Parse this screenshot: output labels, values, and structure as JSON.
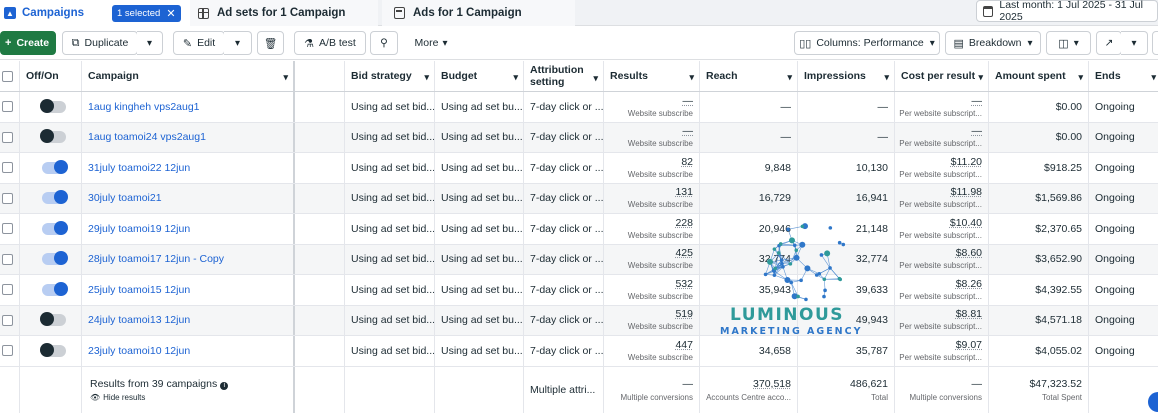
{
  "tabs": {
    "campaigns_label": "Campaigns",
    "selected_chip": "1 selected",
    "adsets_label": "Ad sets for 1 Campaign",
    "ads_label": "Ads for 1 Campaign",
    "date_range": "Last month: 1 Jul 2025 - 31 Jul 2025"
  },
  "toolbar": {
    "create": "Create",
    "duplicate": "Duplicate",
    "edit": "Edit",
    "ab_test": "A/B test",
    "more": "More",
    "columns": "Columns: Performance",
    "breakdown": "Breakdown"
  },
  "columns": {
    "off_on": "Off/On",
    "campaign": "Campaign",
    "bid_strategy": "Bid strategy",
    "budget": "Budget",
    "attribution": "Attribution setting",
    "results": "Results",
    "reach": "Reach",
    "impressions": "Impressions",
    "cost_per_result": "Cost per result",
    "amount_spent": "Amount spent",
    "ends": "Ends"
  },
  "rows": [
    {
      "on": false,
      "campaign": "1aug kingheh vps2aug1",
      "bid": "Using ad set bid...",
      "budget": "Using ad set bu...",
      "attr": "7-day click or ...",
      "results": "—",
      "results_sub": "Website subscribe",
      "reach": "—",
      "impressions": "—",
      "cpr": "—",
      "cpr_sub": "Per website subscript...",
      "spent": "$0.00",
      "ends": "Ongoing"
    },
    {
      "on": false,
      "campaign": "1aug toamoi24 vps2aug1",
      "bid": "Using ad set bid...",
      "budget": "Using ad set bu...",
      "attr": "7-day click or ...",
      "results": "—",
      "results_sub": "Website subscribe",
      "reach": "—",
      "impressions": "—",
      "cpr": "—",
      "cpr_sub": "Per website subscript...",
      "spent": "$0.00",
      "ends": "Ongoing"
    },
    {
      "on": true,
      "campaign": "31july toamoi22 12jun",
      "bid": "Using ad set bid...",
      "budget": "Using ad set bu...",
      "attr": "7-day click or ...",
      "results": "82",
      "results_sub": "Website subscribe",
      "reach": "9,848",
      "impressions": "10,130",
      "cpr": "$11.20",
      "cpr_sub": "Per website subscript...",
      "spent": "$918.25",
      "ends": "Ongoing"
    },
    {
      "on": true,
      "campaign": "30july toamoi21",
      "bid": "Using ad set bid...",
      "budget": "Using ad set bu...",
      "attr": "7-day click or ...",
      "results": "131",
      "results_sub": "Website subscribe",
      "reach": "16,729",
      "impressions": "16,941",
      "cpr": "$11.98",
      "cpr_sub": "Per website subscript...",
      "spent": "$1,569.86",
      "ends": "Ongoing"
    },
    {
      "on": true,
      "campaign": "29july toamoi19 12jun",
      "bid": "Using ad set bid...",
      "budget": "Using ad set bu...",
      "attr": "7-day click or ...",
      "results": "228",
      "results_sub": "Website subscribe",
      "reach": "20,946",
      "impressions": "21,148",
      "cpr": "$10.40",
      "cpr_sub": "Per website subscript...",
      "spent": "$2,370.65",
      "ends": "Ongoing"
    },
    {
      "on": true,
      "campaign": "28july toamoi17 12jun - Copy",
      "bid": "Using ad set bid...",
      "budget": "Using ad set bu...",
      "attr": "7-day click or ...",
      "results": "425",
      "results_sub": "Website subscribe",
      "reach": "32,774",
      "impressions": "32,774",
      "cpr": "$8.60",
      "cpr_sub": "Per website subscript...",
      "spent": "$3,652.90",
      "ends": "Ongoing"
    },
    {
      "on": true,
      "campaign": "25july toamoi15 12jun",
      "bid": "Using ad set bid...",
      "budget": "Using ad set bu...",
      "attr": "7-day click or ...",
      "results": "532",
      "results_sub": "Website subscribe",
      "reach": "35,943",
      "impressions": "39,633",
      "cpr": "$8.26",
      "cpr_sub": "Per website subscript...",
      "spent": "$4,392.55",
      "ends": "Ongoing"
    },
    {
      "on": false,
      "campaign": "24july toamoi13 12jun",
      "bid": "Using ad set bid...",
      "budget": "Using ad set bu...",
      "attr": "7-day click or ...",
      "results": "519",
      "results_sub": "Website subscribe",
      "reach": "",
      "impressions": "49,943",
      "cpr": "$8.81",
      "cpr_sub": "Per website subscript...",
      "spent": "$4,571.18",
      "ends": "Ongoing"
    },
    {
      "on": false,
      "campaign": "23july toamoi10 12jun",
      "bid": "Using ad set bid...",
      "budget": "Using ad set bu...",
      "attr": "7-day click or ...",
      "results": "447",
      "results_sub": "Website subscribe",
      "reach": "34,658",
      "impressions": "35,787",
      "cpr": "$9.07",
      "cpr_sub": "Per website subscript...",
      "spent": "$4,055.02",
      "ends": "Ongoing"
    }
  ],
  "footer": {
    "results_text": "Results from 39 campaigns",
    "hide_results": "Hide results",
    "attribution": "Multiple attri...",
    "results": "—",
    "results_sub": "Multiple conversions",
    "reach": "370,518",
    "reach_sub": "Accounts Centre acco...",
    "impressions": "486,621",
    "impressions_sub": "Total",
    "cpr": "—",
    "cpr_sub": "Multiple conversions",
    "spent": "$47,323.52",
    "spent_sub": "Total Spent"
  },
  "watermark": {
    "name": "LUMINOUS",
    "sub": "MARKETING AGENCY"
  },
  "colors": {
    "accent": "#1d63d3",
    "create_green": "#1f7a43",
    "watermark_teal": "#2f9a9a"
  }
}
